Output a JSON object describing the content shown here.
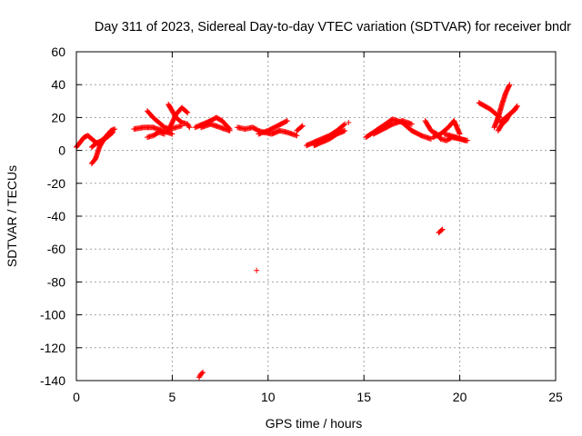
{
  "chart_data": {
    "type": "scatter",
    "title": "Day 311 of 2023, Sidereal Day-to-day VTEC variation (SDTVAR) for receiver bndr",
    "xlabel": "GPS time / hours",
    "ylabel": "SDTVAR / TECUs",
    "xlim": [
      0,
      25
    ],
    "ylim": [
      -140,
      60
    ],
    "xticks": [
      0,
      5,
      10,
      15,
      20,
      25
    ],
    "yticks": [
      60,
      40,
      20,
      0,
      -20,
      -40,
      -60,
      -80,
      -100,
      -120,
      -140
    ],
    "xtick_labels": [
      "0",
      "5",
      "10",
      "15",
      "20",
      "25"
    ],
    "ytick_labels": [
      "60",
      "40",
      "20",
      "0",
      "-20",
      "-40",
      "-60",
      "-80",
      "-100",
      "-120",
      "-140"
    ],
    "grid": true,
    "marker": "+",
    "color": "#ff0000",
    "traces": [
      {
        "x": [
          0.0,
          0.2,
          0.4,
          0.6,
          0.8,
          1.0,
          1.2
        ],
        "y": [
          2,
          5,
          8,
          9,
          7,
          5,
          4
        ]
      },
      {
        "x": [
          0.8,
          1.0,
          1.2,
          1.5,
          1.8,
          2.0
        ],
        "y": [
          -8,
          -5,
          2,
          8,
          12,
          13
        ]
      },
      {
        "x": [
          0.8,
          1.0,
          1.3,
          1.6,
          1.9
        ],
        "y": [
          2,
          4,
          6,
          8,
          11
        ]
      },
      {
        "x": [
          3.0,
          3.5,
          4.0,
          4.5,
          5.0
        ],
        "y": [
          13,
          14,
          14,
          12,
          10
        ]
      },
      {
        "x": [
          3.7,
          4.0,
          4.3,
          4.6
        ],
        "y": [
          8,
          9,
          11,
          10
        ]
      },
      {
        "x": [
          3.7,
          4.0,
          4.3,
          4.6,
          4.9,
          5.2,
          5.5
        ],
        "y": [
          24,
          20,
          17,
          14,
          13,
          14,
          15
        ]
      },
      {
        "x": [
          4.8,
          5.0,
          5.2,
          5.5,
          5.8
        ],
        "y": [
          12,
          17,
          22,
          26,
          23
        ]
      },
      {
        "x": [
          4.8,
          5.0,
          5.2,
          5.5,
          5.8,
          5.9
        ],
        "y": [
          28,
          24,
          20,
          17,
          16,
          14
        ]
      },
      {
        "x": [
          6.2,
          6.6,
          7.0,
          7.3,
          7.6,
          8.0
        ],
        "y": [
          14,
          16,
          18,
          20,
          18,
          13
        ]
      },
      {
        "x": [
          6.5,
          7.0,
          7.5,
          8.0
        ],
        "y": [
          14,
          16,
          14,
          12
        ]
      },
      {
        "x": [
          8.4,
          8.8,
          9.2,
          9.5,
          9.8,
          10.2,
          10.6,
          11.0,
          11.5
        ],
        "y": [
          14,
          13,
          14,
          12,
          11,
          10,
          12,
          11,
          9
        ]
      },
      {
        "x": [
          9.5,
          10.0,
          10.5,
          11.0
        ],
        "y": [
          10,
          12,
          15,
          18
        ]
      },
      {
        "x": [
          11.5,
          11.8
        ],
        "y": [
          12,
          15
        ]
      },
      {
        "x": [
          12.0,
          12.4,
          12.8,
          13.2,
          13.6,
          14.0
        ],
        "y": [
          3,
          5,
          7,
          9,
          12,
          16
        ]
      },
      {
        "x": [
          12.4,
          12.8,
          13.2,
          13.6,
          14.0
        ],
        "y": [
          3,
          5,
          7,
          10,
          12
        ]
      },
      {
        "x": [
          15.1,
          15.5,
          16.0,
          16.5,
          17.0,
          17.5,
          18.0,
          18.5
        ],
        "y": [
          8,
          11,
          15,
          19,
          17,
          12,
          9,
          7
        ]
      },
      {
        "x": [
          15.5,
          16.0,
          16.5,
          17.0,
          17.5
        ],
        "y": [
          10,
          13,
          16,
          18,
          16
        ]
      },
      {
        "x": [
          18.2,
          18.5,
          18.8,
          19.0,
          19.3,
          19.6,
          20.0,
          20.4
        ],
        "y": [
          18,
          12,
          10,
          7,
          6,
          8,
          7,
          6
        ]
      },
      {
        "x": [
          18.6,
          19.0,
          19.4,
          19.7,
          20.0
        ],
        "y": [
          8,
          10,
          14,
          18,
          10
        ]
      },
      {
        "x": [
          19.2,
          19.8,
          20.3
        ],
        "y": [
          10,
          8,
          6
        ]
      },
      {
        "x": [
          21.0,
          21.3,
          21.6,
          21.9,
          22.1
        ],
        "y": [
          29,
          27,
          25,
          22,
          20
        ]
      },
      {
        "x": [
          21.8,
          22.0,
          22.2,
          22.4,
          22.6
        ],
        "y": [
          14,
          20,
          28,
          35,
          40
        ]
      },
      {
        "x": [
          22.0,
          22.2,
          22.4,
          22.6,
          22.8,
          23.0
        ],
        "y": [
          12,
          16,
          18,
          22,
          24,
          27
        ]
      },
      {
        "x": [
          22.1,
          22.3,
          22.5,
          22.7,
          22.9
        ],
        "y": [
          17,
          19,
          21,
          23,
          25
        ]
      },
      {
        "x": [
          6.4,
          6.5,
          6.6
        ],
        "y": [
          -138,
          -136,
          -135
        ]
      },
      {
        "x": [
          9.4
        ],
        "y": [
          -73
        ]
      },
      {
        "x": [
          14.2
        ],
        "y": [
          17
        ]
      },
      {
        "x": [
          18.9,
          19.0,
          19.1
        ],
        "y": [
          -50,
          -49,
          -48
        ]
      }
    ]
  }
}
